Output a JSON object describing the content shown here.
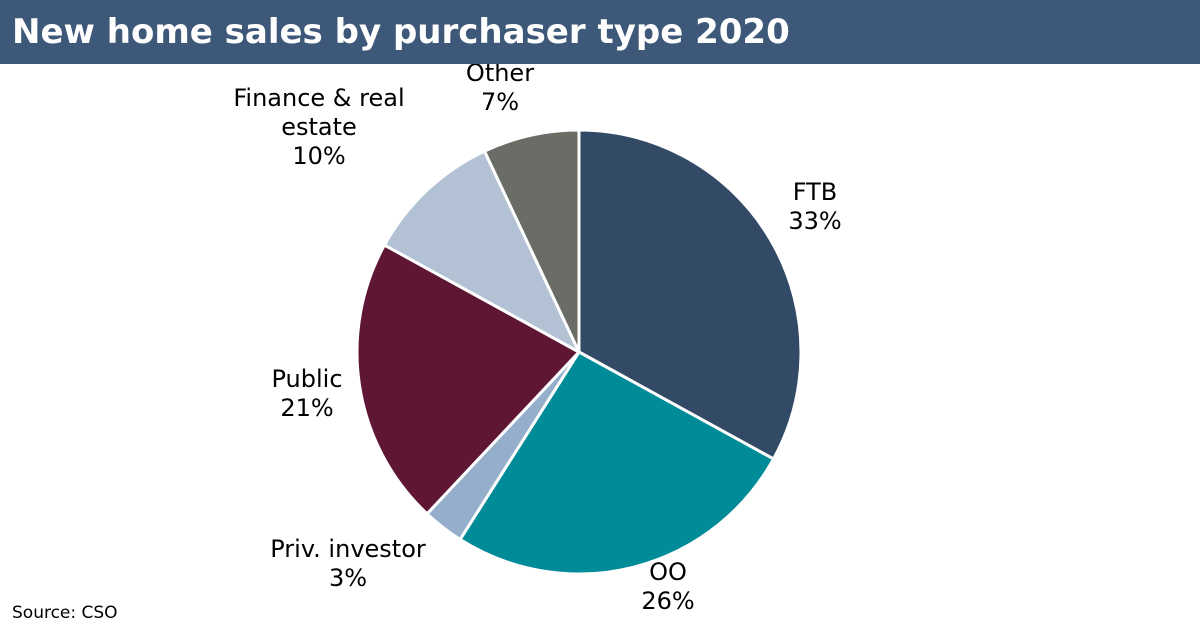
{
  "header": {
    "title": "New home sales by purchaser type 2020"
  },
  "footer": {
    "source": "Source: CSO"
  },
  "chart_data": {
    "type": "pie",
    "title": "New home sales by purchaser type 2020",
    "legend": "none",
    "slices": [
      {
        "label": "FTB",
        "value": 33,
        "value_label": "33%",
        "color": "#324a66"
      },
      {
        "label": "OO",
        "value": 26,
        "value_label": "26%",
        "color": "#008b99"
      },
      {
        "label": "Priv. investor",
        "value": 3,
        "value_label": "3%",
        "color": "#95aecb"
      },
      {
        "label": "Public",
        "value": 21,
        "value_label": "21%",
        "color": "#5e1634"
      },
      {
        "label": "Finance & real estate",
        "value": 10,
        "value_label": "10%",
        "color": "#b2c2d4"
      },
      {
        "label": "Other",
        "value": 7,
        "value_label": "7%",
        "color": "#6a6d66"
      }
    ]
  }
}
